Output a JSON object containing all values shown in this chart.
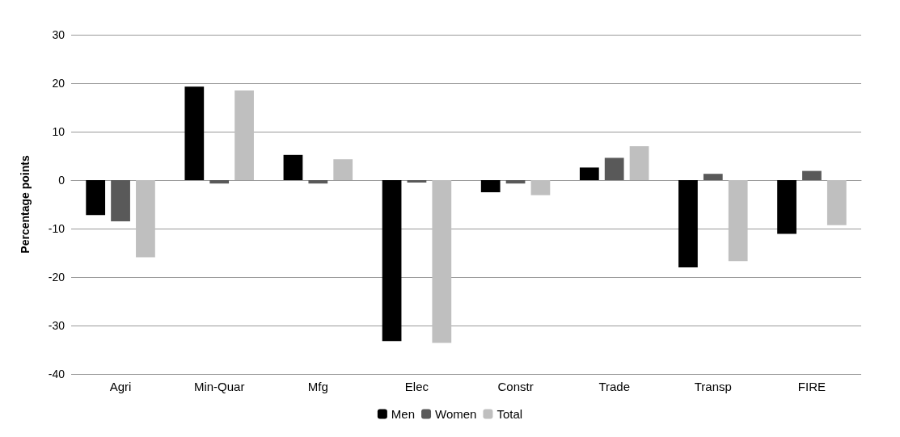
{
  "chart_data": {
    "type": "bar",
    "ylabel": "Percentage points",
    "categories": [
      "Agri",
      "Min-Quar",
      "Mfg",
      "Elec",
      "Constr",
      "Trade",
      "Transp",
      "FIRE"
    ],
    "series": [
      {
        "name": "Men",
        "color": "#000000",
        "values": [
          -7.2,
          19.3,
          5.2,
          -33.2,
          -2.5,
          2.6,
          -18.0,
          -11.1
        ]
      },
      {
        "name": "Women",
        "color": "#595959",
        "values": [
          -8.5,
          -0.7,
          -0.7,
          -0.5,
          -0.7,
          4.6,
          1.3,
          1.9
        ]
      },
      {
        "name": "Total",
        "color": "#bfbfbf",
        "values": [
          -15.9,
          18.5,
          4.3,
          -33.6,
          -3.1,
          7.0,
          -16.7,
          -9.3
        ]
      }
    ],
    "ylim": [
      -40,
      30
    ],
    "yticks": [
      -40,
      -30,
      -20,
      -10,
      0,
      10,
      20,
      30
    ],
    "grid": "y",
    "legend": "bottom"
  }
}
